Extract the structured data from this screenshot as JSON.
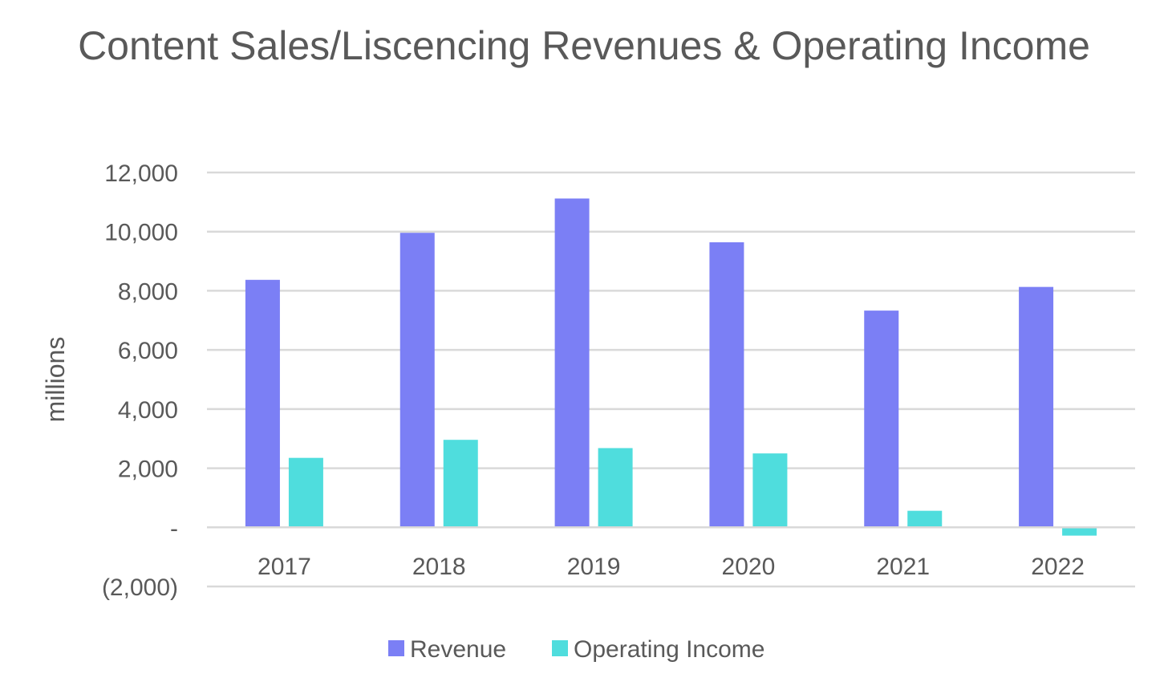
{
  "chart_data": {
    "type": "bar",
    "title": "Content Sales/Liscencing Revenues & Operating Income",
    "xlabel": "",
    "ylabel": "millions",
    "categories": [
      "2017",
      "2018",
      "2019",
      "2020",
      "2021",
      "2022"
    ],
    "series": [
      {
        "name": "Revenue",
        "color": "#7b7ff5",
        "values": [
          8370,
          9960,
          11120,
          9640,
          7330,
          8130
        ]
      },
      {
        "name": "Operating Income",
        "color": "#4fdddd",
        "values": [
          2350,
          2960,
          2680,
          2500,
          560,
          -280
        ]
      }
    ],
    "ylim": [
      -2000,
      12000
    ],
    "yticks": [
      -2000,
      0,
      2000,
      4000,
      6000,
      8000,
      10000,
      12000
    ],
    "ytick_labels": [
      "(2,000)",
      "-",
      "2,000",
      "4,000",
      "6,000",
      "8,000",
      "10,000",
      "12,000"
    ],
    "grid": true,
    "legend": "bottom-center"
  }
}
